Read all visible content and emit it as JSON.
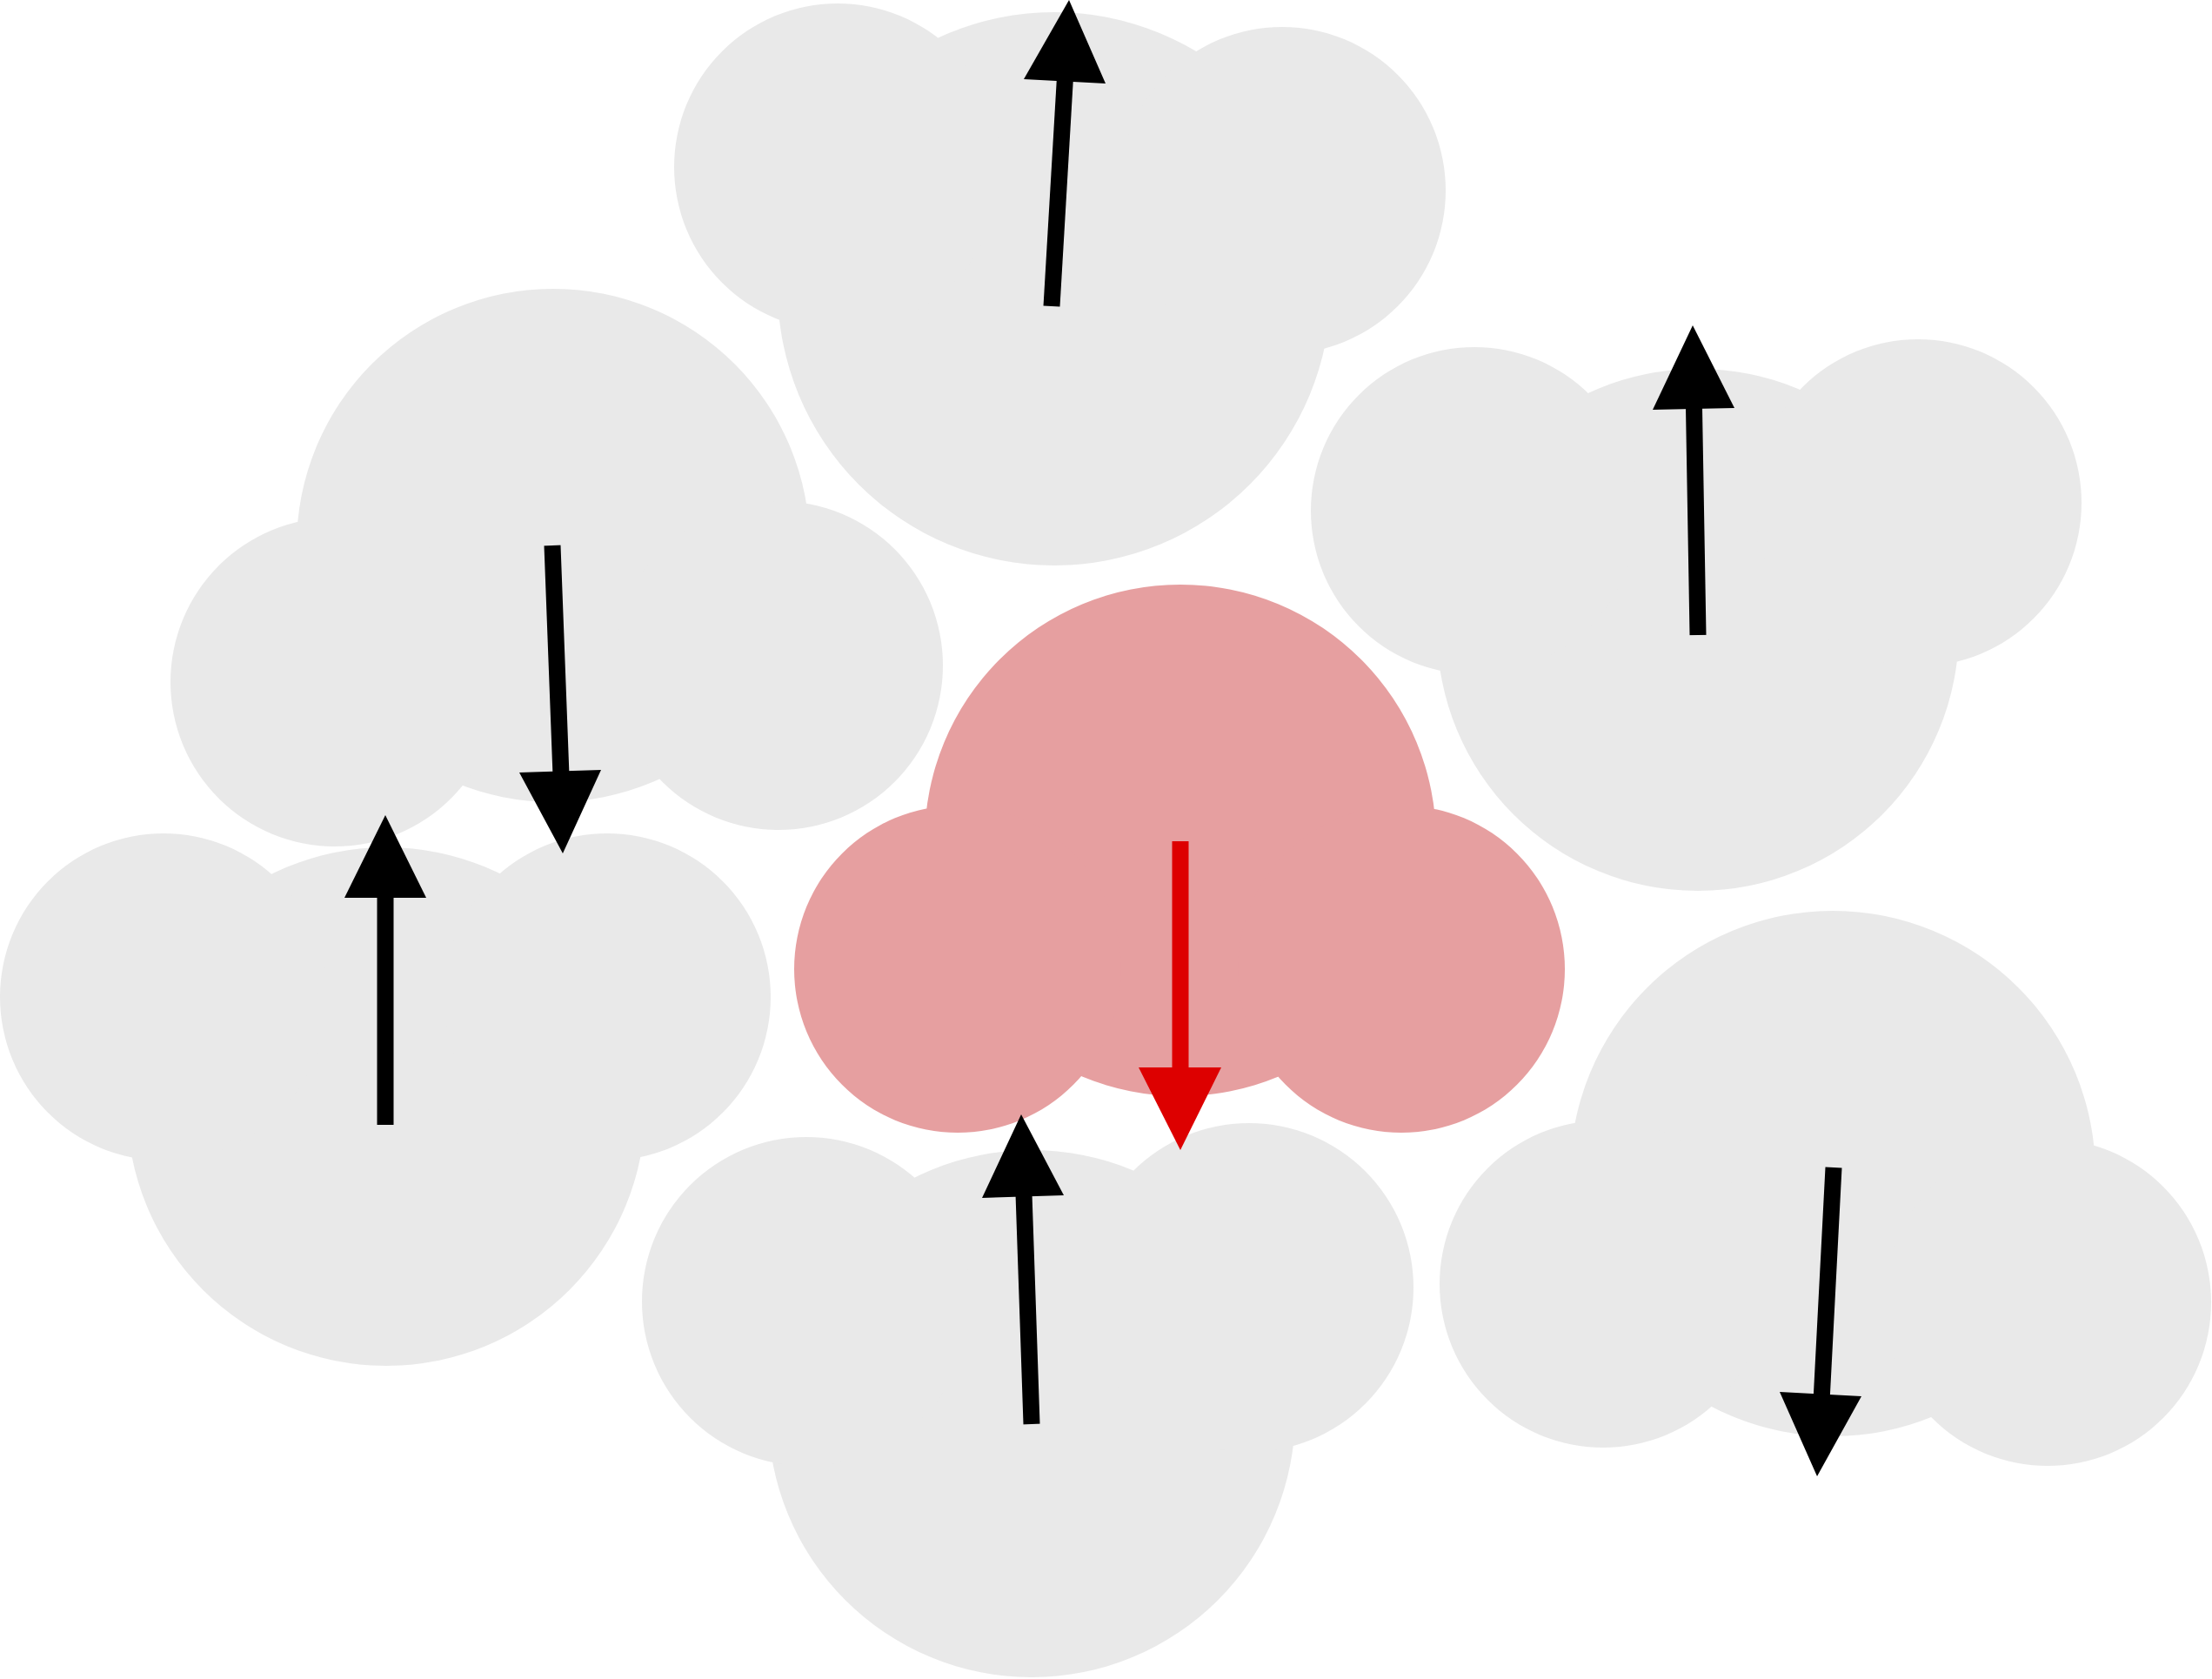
{
  "colors": {
    "background": "#ffffff",
    "molecule_fill": "#e9e9e9",
    "highlight_fill": "#e69fa0",
    "arrow": "#000000",
    "highlight_arrow": "#dd0000"
  },
  "molecules": [
    {
      "id": "top",
      "highlighted": false,
      "arrow_direction": "up"
    },
    {
      "id": "upper-left",
      "highlighted": false,
      "arrow_direction": "down"
    },
    {
      "id": "upper-right",
      "highlighted": false,
      "arrow_direction": "up"
    },
    {
      "id": "center",
      "highlighted": true,
      "arrow_direction": "down"
    },
    {
      "id": "lower-left",
      "highlighted": false,
      "arrow_direction": "up"
    },
    {
      "id": "bottom",
      "highlighted": false,
      "arrow_direction": "up"
    },
    {
      "id": "lower-right",
      "highlighted": false,
      "arrow_direction": "down"
    }
  ]
}
